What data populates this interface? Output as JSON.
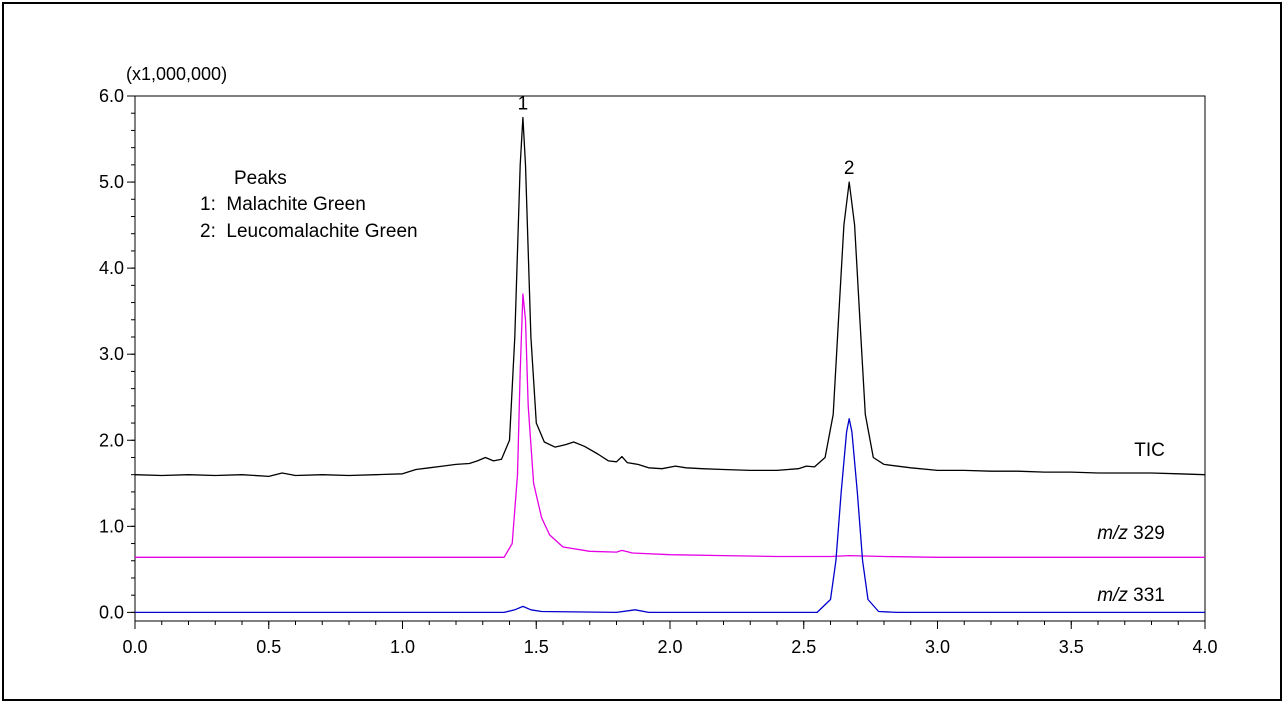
{
  "chart_data": {
    "type": "line",
    "y_multiplier_label": "(x1,000,000)",
    "xlim": [
      0.0,
      4.0
    ],
    "ylim": [
      -0.1,
      6.0
    ],
    "x_ticks": [
      "0.0",
      "0.5",
      "1.0",
      "1.5",
      "2.0",
      "2.5",
      "3.0",
      "3.5",
      "4.0"
    ],
    "y_ticks": [
      "0.0",
      "1.0",
      "2.0",
      "3.0",
      "4.0",
      "5.0",
      "6.0"
    ],
    "legend": {
      "title": "Peaks",
      "items": [
        "1:  Malachite Green",
        "2:  Leucomalachite Green"
      ]
    },
    "peak_labels": [
      {
        "label": "1",
        "x": 1.45,
        "y": 5.75
      },
      {
        "label": "2",
        "x": 2.67,
        "y": 5.0
      }
    ],
    "series": [
      {
        "name": "TIC",
        "label_text": "TIC",
        "color": "#000000",
        "label_at": [
          3.85,
          1.82
        ],
        "points": [
          [
            0.0,
            1.6
          ],
          [
            0.1,
            1.59
          ],
          [
            0.2,
            1.6
          ],
          [
            0.3,
            1.59
          ],
          [
            0.4,
            1.6
          ],
          [
            0.5,
            1.58
          ],
          [
            0.55,
            1.62
          ],
          [
            0.6,
            1.59
          ],
          [
            0.7,
            1.6
          ],
          [
            0.8,
            1.59
          ],
          [
            0.9,
            1.6
          ],
          [
            1.0,
            1.61
          ],
          [
            1.05,
            1.66
          ],
          [
            1.1,
            1.68
          ],
          [
            1.15,
            1.7
          ],
          [
            1.2,
            1.72
          ],
          [
            1.25,
            1.73
          ],
          [
            1.28,
            1.76
          ],
          [
            1.31,
            1.8
          ],
          [
            1.34,
            1.76
          ],
          [
            1.37,
            1.78
          ],
          [
            1.4,
            2.0
          ],
          [
            1.42,
            3.2
          ],
          [
            1.44,
            5.2
          ],
          [
            1.45,
            5.75
          ],
          [
            1.46,
            5.2
          ],
          [
            1.48,
            3.2
          ],
          [
            1.5,
            2.2
          ],
          [
            1.53,
            1.98
          ],
          [
            1.57,
            1.92
          ],
          [
            1.61,
            1.95
          ],
          [
            1.64,
            1.98
          ],
          [
            1.68,
            1.93
          ],
          [
            1.73,
            1.84
          ],
          [
            1.77,
            1.76
          ],
          [
            1.8,
            1.75
          ],
          [
            1.82,
            1.81
          ],
          [
            1.84,
            1.74
          ],
          [
            1.88,
            1.72
          ],
          [
            1.92,
            1.68
          ],
          [
            1.97,
            1.67
          ],
          [
            2.02,
            1.7
          ],
          [
            2.06,
            1.68
          ],
          [
            2.12,
            1.67
          ],
          [
            2.2,
            1.66
          ],
          [
            2.3,
            1.65
          ],
          [
            2.4,
            1.65
          ],
          [
            2.48,
            1.67
          ],
          [
            2.51,
            1.7
          ],
          [
            2.54,
            1.69
          ],
          [
            2.58,
            1.8
          ],
          [
            2.61,
            2.3
          ],
          [
            2.63,
            3.4
          ],
          [
            2.65,
            4.5
          ],
          [
            2.67,
            5.0
          ],
          [
            2.69,
            4.5
          ],
          [
            2.71,
            3.4
          ],
          [
            2.73,
            2.3
          ],
          [
            2.76,
            1.8
          ],
          [
            2.8,
            1.72
          ],
          [
            2.9,
            1.68
          ],
          [
            3.0,
            1.65
          ],
          [
            3.1,
            1.65
          ],
          [
            3.2,
            1.64
          ],
          [
            3.3,
            1.64
          ],
          [
            3.4,
            1.63
          ],
          [
            3.5,
            1.63
          ],
          [
            3.6,
            1.62
          ],
          [
            3.7,
            1.62
          ],
          [
            3.8,
            1.62
          ],
          [
            3.9,
            1.61
          ],
          [
            4.0,
            1.6
          ]
        ]
      },
      {
        "name": "m/z 329",
        "label_italic": "m/z",
        "label_text": " 329",
        "color": "#e600e6",
        "label_at": [
          3.85,
          0.85
        ],
        "points": [
          [
            0.0,
            0.64
          ],
          [
            1.3,
            0.64
          ],
          [
            1.38,
            0.64
          ],
          [
            1.41,
            0.8
          ],
          [
            1.43,
            1.6
          ],
          [
            1.44,
            2.8
          ],
          [
            1.45,
            3.7
          ],
          [
            1.46,
            3.4
          ],
          [
            1.47,
            2.4
          ],
          [
            1.49,
            1.5
          ],
          [
            1.52,
            1.1
          ],
          [
            1.55,
            0.9
          ],
          [
            1.6,
            0.76
          ],
          [
            1.7,
            0.71
          ],
          [
            1.8,
            0.7
          ],
          [
            1.82,
            0.72
          ],
          [
            1.86,
            0.69
          ],
          [
            2.0,
            0.67
          ],
          [
            2.2,
            0.66
          ],
          [
            2.4,
            0.65
          ],
          [
            2.6,
            0.65
          ],
          [
            2.67,
            0.66
          ],
          [
            2.8,
            0.65
          ],
          [
            3.0,
            0.64
          ],
          [
            4.0,
            0.64
          ]
        ]
      },
      {
        "name": "m/z 331",
        "label_italic": "m/z",
        "label_text": " 331",
        "color": "#0000cc",
        "label_at": [
          3.85,
          0.13
        ],
        "points": [
          [
            0.0,
            0.0
          ],
          [
            1.38,
            0.0
          ],
          [
            1.42,
            0.03
          ],
          [
            1.45,
            0.07
          ],
          [
            1.48,
            0.03
          ],
          [
            1.52,
            0.01
          ],
          [
            1.8,
            0.0
          ],
          [
            1.87,
            0.03
          ],
          [
            1.92,
            0.0
          ],
          [
            2.55,
            0.0
          ],
          [
            2.6,
            0.15
          ],
          [
            2.62,
            0.6
          ],
          [
            2.64,
            1.4
          ],
          [
            2.66,
            2.1
          ],
          [
            2.67,
            2.25
          ],
          [
            2.68,
            2.1
          ],
          [
            2.7,
            1.4
          ],
          [
            2.72,
            0.6
          ],
          [
            2.74,
            0.15
          ],
          [
            2.78,
            0.01
          ],
          [
            2.85,
            0.0
          ],
          [
            4.0,
            0.0
          ]
        ]
      }
    ]
  }
}
